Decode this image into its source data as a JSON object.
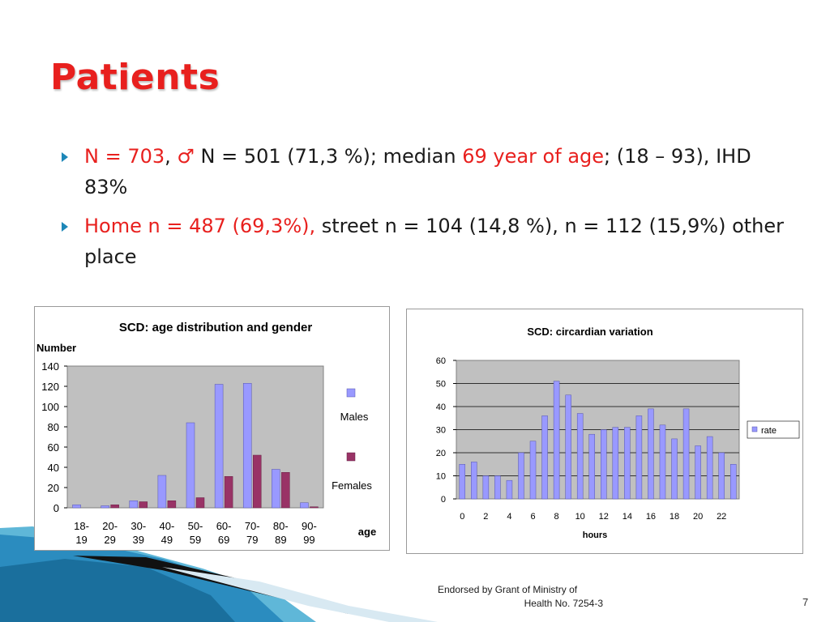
{
  "slide": {
    "title": "Patients",
    "bullet1": {
      "red1": "N = 703",
      "sep": ", ",
      "symbol": "♂",
      "text1": " N = 501 (71,3 %); median ",
      "red2": "69 year of age",
      "text2": "; (18 – 93), IHD 83%"
    },
    "bullet2": {
      "red1": "Home n = 487 (69,3%),",
      "text1": " street n = 104 (14,8 %), n = 112 (15,9%) other place"
    },
    "footer_line1": "Endorsed by Grant of Ministry of",
    "footer_line2": "Health No. 7254-3",
    "page_number": "7"
  },
  "colors": {
    "accent": "#e8201e",
    "males": "#9999ff",
    "females": "#993366",
    "rate": "#9999ff",
    "plot_bg": "#c0c0c0"
  },
  "chart_data": [
    {
      "type": "bar",
      "title": "SCD: age distribution and gender",
      "ylabel": "Number",
      "xlabel": "age",
      "categories": [
        [
          "18-",
          "19"
        ],
        [
          "20-",
          "29"
        ],
        [
          "30-",
          "39"
        ],
        [
          "40-",
          "49"
        ],
        [
          "50-",
          "59"
        ],
        [
          "60-",
          "69"
        ],
        [
          "70-",
          "79"
        ],
        [
          "80-",
          "89"
        ],
        [
          "90-",
          "99"
        ]
      ],
      "series": [
        {
          "name": "Males",
          "values": [
            3,
            2,
            7,
            32,
            84,
            122,
            123,
            38,
            5
          ]
        },
        {
          "name": "Females",
          "values": [
            0,
            3,
            6,
            7,
            10,
            31,
            52,
            35,
            1
          ]
        }
      ],
      "ylim": [
        0,
        140
      ],
      "yticks": [
        0,
        20,
        40,
        60,
        80,
        100,
        120,
        140
      ],
      "legend": "right",
      "grid": false
    },
    {
      "type": "bar",
      "title": "SCD: circardian variation",
      "xlabel": "hours",
      "ylabel": "",
      "x": [
        0,
        1,
        2,
        3,
        4,
        5,
        6,
        7,
        8,
        9,
        10,
        11,
        12,
        13,
        14,
        15,
        16,
        17,
        18,
        19,
        20,
        21,
        22,
        23
      ],
      "xtick_labels": [
        "0",
        "2",
        "4",
        "6",
        "8",
        "10",
        "12",
        "14",
        "16",
        "18",
        "20",
        "22"
      ],
      "series": [
        {
          "name": "rate",
          "values": [
            15,
            16,
            10,
            10,
            8,
            20,
            25,
            36,
            51,
            45,
            37,
            28,
            30,
            31,
            31,
            36,
            39,
            32,
            26,
            39,
            23,
            27,
            20,
            15
          ]
        }
      ],
      "ylim": [
        0,
        60
      ],
      "yticks": [
        0,
        10,
        20,
        30,
        40,
        50,
        60
      ],
      "legend": "right",
      "grid": true
    }
  ]
}
